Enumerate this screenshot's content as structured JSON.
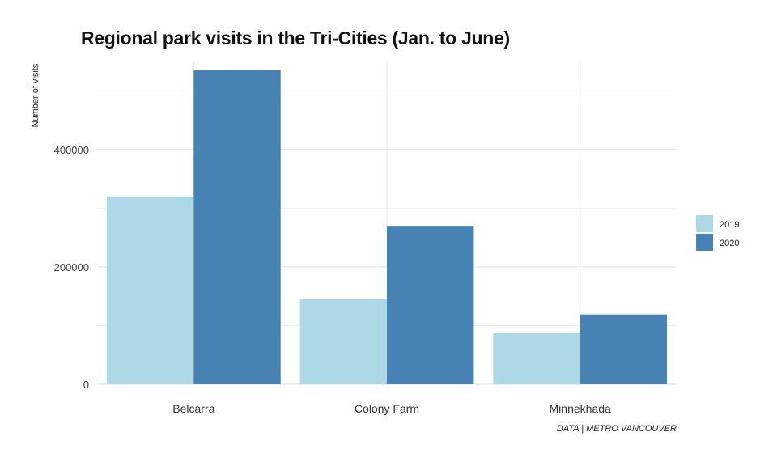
{
  "chart_data": {
    "type": "bar",
    "title": "Regional park visits in the Tri-Cities (Jan. to June)",
    "ylabel": "Number of visits",
    "xlabel": "",
    "categories": [
      "Belcarra",
      "Colony Farm",
      "Minnekhada"
    ],
    "series": [
      {
        "name": "2019",
        "color": "#add8e6",
        "values": [
          320000,
          145000,
          88000
        ]
      },
      {
        "name": "2020",
        "color": "#4682b4",
        "values": [
          535000,
          270000,
          119000
        ]
      }
    ],
    "ylim": [
      0,
      550000
    ],
    "yticks": [
      0,
      200000,
      400000
    ],
    "yticks_labels": [
      "0",
      "200000",
      "400000"
    ],
    "grid": true,
    "legend_position": "right",
    "caption": "DATA | METRO VANCOUVER"
  }
}
